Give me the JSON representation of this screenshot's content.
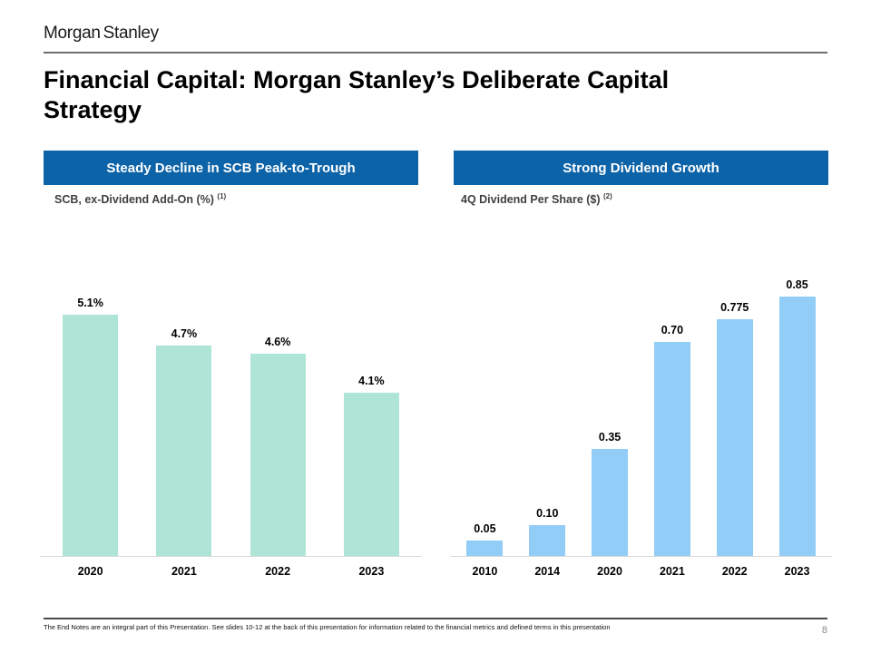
{
  "header": {
    "logo": "Morgan Stanley",
    "title": "Financial Capital: Morgan Stanley’s Deliberate Capital Strategy"
  },
  "colors": {
    "panel_header_blue": "#0d63a8",
    "left_bar_mint": "#aee5d6",
    "right_bar_blue": "#92cdf8",
    "baseline_gray": "#d9d9d9",
    "subtitle_gray": "#404040"
  },
  "chart_data": [
    {
      "type": "bar",
      "title": "Steady Decline in SCB Peak-to-Trough",
      "subtitle": "SCB, ex-Dividend Add-On (%)",
      "subtitle_superscript": "(1)",
      "categories": [
        "2020",
        "2021",
        "2022",
        "2023"
      ],
      "values": [
        5.1,
        4.7,
        4.6,
        4.1
      ],
      "labels": [
        "5.1%",
        "4.7%",
        "4.6%",
        "4.1%"
      ],
      "ylim": [
        2.0,
        5.1
      ],
      "grid": "off",
      "legend": "none",
      "bar_color": "#aee5d6"
    },
    {
      "type": "bar",
      "title": "Strong Dividend Growth",
      "subtitle": "4Q Dividend Per Share ($)",
      "subtitle_superscript": "(2)",
      "categories": [
        "2010",
        "2014",
        "2020",
        "2021",
        "2022",
        "2023"
      ],
      "values": [
        0.05,
        0.1,
        0.35,
        0.7,
        0.775,
        0.85
      ],
      "labels": [
        "0.05",
        "0.10",
        "0.35",
        "0.70",
        "0.775",
        "0.85"
      ],
      "ylim": [
        0,
        0.85
      ],
      "grid": "off",
      "legend": "none",
      "bar_color": "#92cdf8"
    }
  ],
  "footer": {
    "note": "The End Notes are an integral part of this Presentation. See slides 10-12 at the back of this presentation for information related to the financial metrics and defined terms in this presentation",
    "page_number": "8"
  }
}
